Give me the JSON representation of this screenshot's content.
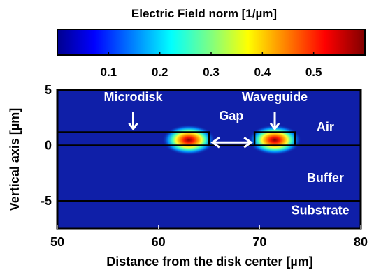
{
  "chart_data": {
    "type": "heatmap",
    "colorbar": {
      "title": "Electric Field norm [1/µm]",
      "range": [
        0,
        0.6
      ],
      "ticks": [
        0.1,
        0.2,
        0.3,
        0.4,
        0.5
      ],
      "tick_labels": [
        "0.1",
        "0.2",
        "0.3",
        "0.4",
        "0.5"
      ],
      "colormap": "jet",
      "position": "top"
    },
    "xlabel": "Distance from the disk center [µm]",
    "ylabel": "Vertical axis [µm]",
    "xlim": [
      50,
      80
    ],
    "ylim": [
      -7.5,
      5
    ],
    "xticks": [
      50,
      60,
      70,
      80
    ],
    "xtick_labels": [
      "50",
      "60",
      "70",
      "80"
    ],
    "yticks": [
      5,
      0,
      -5
    ],
    "ytick_labels": [
      "5",
      "0",
      "-5"
    ],
    "grid": false,
    "structures": [
      {
        "name": "Microdisk",
        "x0": 50,
        "x1": 65,
        "y0": 0,
        "y1": 1.2
      },
      {
        "name": "Waveguide",
        "x0": 69.5,
        "x1": 73.5,
        "y0": 0,
        "y1": 1.2
      }
    ],
    "interfaces_y": [
      0,
      -5
    ],
    "field_peaks": [
      {
        "x": 63,
        "y": 0.5,
        "value": 0.58
      },
      {
        "x": 71.5,
        "y": 0.5,
        "value": 0.58
      }
    ],
    "annotations": [
      {
        "text": "Microdisk",
        "x": 57.5,
        "y": 4
      },
      {
        "text": "Waveguide",
        "x": 71.5,
        "y": 4
      },
      {
        "text": "Gap",
        "x": 67.2,
        "y": 2.3
      },
      {
        "text": "Air",
        "x": 76.5,
        "y": 1.3
      },
      {
        "text": "Buffer",
        "x": 76.5,
        "y": -3.3
      },
      {
        "text": "Substrate",
        "x": 76,
        "y": -6.2
      }
    ],
    "arrows": [
      {
        "x": 57.5,
        "y_from": 3.0,
        "y_to": 1.5
      },
      {
        "x": 71.5,
        "y_from": 3.0,
        "y_to": 1.5
      }
    ],
    "gap_arrow": {
      "x_from": 65.2,
      "x_to": 69.3,
      "y": 0.15
    }
  },
  "colors": {
    "background_field": "#0f1fa8",
    "structure_line": "#000000",
    "annotation_text": "#ffffff"
  }
}
